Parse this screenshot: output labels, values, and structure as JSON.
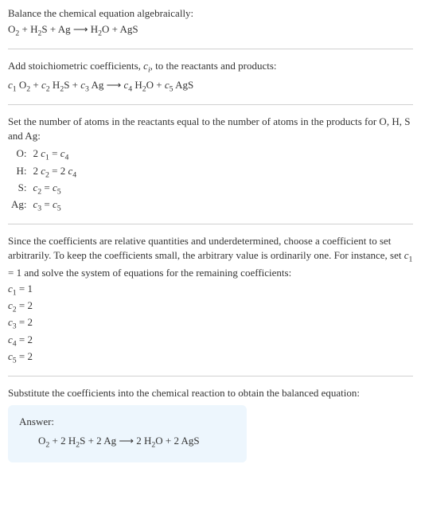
{
  "colors": {
    "text": "#333333",
    "background": "#ffffff",
    "rule": "#d0d0d0",
    "answer_bg": "#edf6fd"
  },
  "typography": {
    "base_font": "Georgia, Times New Roman, serif",
    "base_size_pt": 10,
    "line_height": 1.4
  },
  "sections": {
    "balance": {
      "intro": "Balance the chemical equation algebraically:",
      "equation_html": "O<span class='sub'>2</span> + H<span class='sub'>2</span>S + Ag <span class='arrow'>⟶</span> H<span class='sub'>2</span>O + AgS"
    },
    "stoich": {
      "intro_html": "Add stoichiometric coefficients, <span class='it'>c</span><span class='subit'>i</span>, to the reactants and products:",
      "equation_html": "<span class='it'>c</span><span class='sub'>1</span> O<span class='sub'>2</span> + <span class='it'>c</span><span class='sub'>2</span> H<span class='sub'>2</span>S + <span class='it'>c</span><span class='sub'>3</span> Ag <span class='arrow'>⟶</span> <span class='it'>c</span><span class='sub'>4</span> H<span class='sub'>2</span>O + <span class='it'>c</span><span class='sub'>5</span> AgS"
    },
    "atoms": {
      "intro": "Set the number of atoms in the reactants equal to the number of atoms in the products for O, H, S and Ag:",
      "rows": [
        {
          "label": "O:",
          "eq_html": "2 <span class='it'>c</span><span class='sub'>1</span> = <span class='it'>c</span><span class='sub'>4</span>"
        },
        {
          "label": "H:",
          "eq_html": "2 <span class='it'>c</span><span class='sub'>2</span> = 2 <span class='it'>c</span><span class='sub'>4</span>"
        },
        {
          "label": "S:",
          "eq_html": "<span class='it'>c</span><span class='sub'>2</span> = <span class='it'>c</span><span class='sub'>5</span>"
        },
        {
          "label": "Ag:",
          "eq_html": "<span class='it'>c</span><span class='sub'>3</span> = <span class='it'>c</span><span class='sub'>5</span>"
        }
      ]
    },
    "solve": {
      "intro_html": "Since the coefficients are relative quantities and underdetermined, choose a coefficient to set arbitrarily. To keep the coefficients small, the arbitrary value is ordinarily one. For instance, set <span class='it'>c</span><span class='sub'>1</span> = 1 and solve the system of equations for the remaining coefficients:",
      "lines_html": [
        "<span class='it'>c</span><span class='sub'>1</span> = 1",
        "<span class='it'>c</span><span class='sub'>2</span> = 2",
        "<span class='it'>c</span><span class='sub'>3</span> = 2",
        "<span class='it'>c</span><span class='sub'>4</span> = 2",
        "<span class='it'>c</span><span class='sub'>5</span> = 2"
      ]
    },
    "substitute": {
      "intro": "Substitute the coefficients into the chemical reaction to obtain the balanced equation:"
    },
    "answer": {
      "label": "Answer:",
      "equation_html": "O<span class='sub'>2</span> + 2 H<span class='sub'>2</span>S + 2 Ag <span class='arrow'>⟶</span> 2 H<span class='sub'>2</span>O + 2 AgS"
    }
  }
}
